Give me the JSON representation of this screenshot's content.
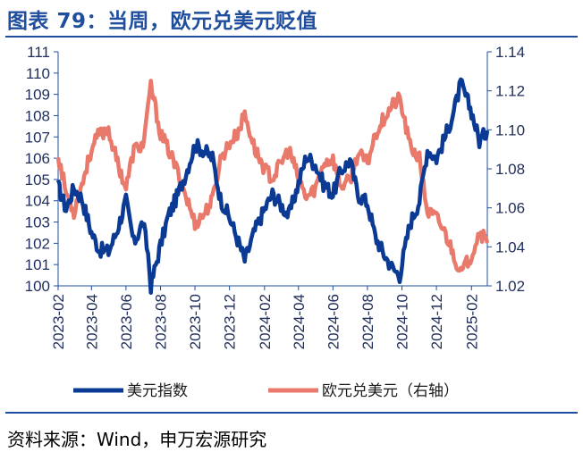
{
  "header": {
    "title": "图表 79：当周，欧元兑美元贬值"
  },
  "footer": {
    "source": "资料来源：Wind，申万宏源研究"
  },
  "chart_data": {
    "type": "line",
    "left_axis": {
      "ylim": [
        100,
        111
      ],
      "ticks": [
        "100",
        "101",
        "102",
        "103",
        "104",
        "105",
        "106",
        "107",
        "108",
        "109",
        "110",
        "111"
      ]
    },
    "right_axis": {
      "ylim": [
        1.02,
        1.14
      ],
      "ticks": [
        "1.02",
        "1.04",
        "1.06",
        "1.08",
        "1.10",
        "1.12",
        "1.14"
      ]
    },
    "x_range": [
      "2023-02",
      "2025-03"
    ],
    "x_ticks": [
      "2023-02",
      "2023-04",
      "2023-06",
      "2023-08",
      "2023-10",
      "2023-12",
      "2024-02",
      "2024-04",
      "2024-06",
      "2024-08",
      "2024-10",
      "2024-12",
      "2025-02"
    ],
    "series": [
      {
        "name": "美元指数",
        "axis": "left",
        "color": "#0a3a94",
        "points": [
          [
            "2023-02-01",
            104.7
          ],
          [
            "2023-02-15",
            103.6
          ],
          [
            "2023-03-01",
            104.6
          ],
          [
            "2023-03-15",
            104.1
          ],
          [
            "2023-04-01",
            102.5
          ],
          [
            "2023-04-15",
            101.7
          ],
          [
            "2023-05-01",
            101.6
          ],
          [
            "2023-05-15",
            102.5
          ],
          [
            "2023-06-01",
            104.0
          ],
          [
            "2023-06-15",
            102.0
          ],
          [
            "2023-07-01",
            103.0
          ],
          [
            "2023-07-10",
            101.5
          ],
          [
            "2023-07-15",
            100.0
          ],
          [
            "2023-08-01",
            101.9
          ],
          [
            "2023-08-15",
            103.3
          ],
          [
            "2023-09-01",
            104.3
          ],
          [
            "2023-09-15",
            105.3
          ],
          [
            "2023-10-01",
            106.6
          ],
          [
            "2023-10-15",
            106.4
          ],
          [
            "2023-11-01",
            106.0
          ],
          [
            "2023-11-15",
            104.1
          ],
          [
            "2023-12-01",
            103.2
          ],
          [
            "2023-12-15",
            102.2
          ],
          [
            "2023-12-28",
            101.2
          ],
          [
            "2024-01-15",
            102.6
          ],
          [
            "2024-02-01",
            103.6
          ],
          [
            "2024-02-15",
            104.3
          ],
          [
            "2024-03-01",
            103.8
          ],
          [
            "2024-03-15",
            103.3
          ],
          [
            "2024-04-01",
            104.8
          ],
          [
            "2024-04-15",
            106.1
          ],
          [
            "2024-05-01",
            105.7
          ],
          [
            "2024-05-15",
            104.8
          ],
          [
            "2024-06-01",
            104.3
          ],
          [
            "2024-06-15",
            105.4
          ],
          [
            "2024-07-01",
            105.9
          ],
          [
            "2024-07-15",
            104.3
          ],
          [
            "2024-08-01",
            103.9
          ],
          [
            "2024-08-15",
            102.3
          ],
          [
            "2024-09-01",
            101.4
          ],
          [
            "2024-09-15",
            100.8
          ],
          [
            "2024-09-27",
            100.5
          ],
          [
            "2024-10-15",
            102.9
          ],
          [
            "2024-11-01",
            104.0
          ],
          [
            "2024-11-15",
            106.4
          ],
          [
            "2024-12-01",
            106.0
          ],
          [
            "2024-12-15",
            106.9
          ],
          [
            "2025-01-01",
            108.2
          ],
          [
            "2025-01-13",
            109.5
          ],
          [
            "2025-02-01",
            108.2
          ],
          [
            "2025-02-15",
            106.8
          ],
          [
            "2025-03-01",
            107.3
          ]
        ]
      },
      {
        "name": "欧元兑美元（右轴）",
        "axis": "right",
        "color": "#e8796b",
        "points": [
          [
            "2023-02-01",
            1.087
          ],
          [
            "2023-02-15",
            1.068
          ],
          [
            "2023-03-01",
            1.058
          ],
          [
            "2023-03-15",
            1.072
          ],
          [
            "2023-04-01",
            1.09
          ],
          [
            "2023-04-15",
            1.098
          ],
          [
            "2023-05-01",
            1.1
          ],
          [
            "2023-05-15",
            1.085
          ],
          [
            "2023-06-01",
            1.07
          ],
          [
            "2023-06-15",
            1.09
          ],
          [
            "2023-07-01",
            1.092
          ],
          [
            "2023-07-10",
            1.11
          ],
          [
            "2023-07-15",
            1.123
          ],
          [
            "2023-08-01",
            1.098
          ],
          [
            "2023-08-15",
            1.09
          ],
          [
            "2023-09-01",
            1.078
          ],
          [
            "2023-09-15",
            1.066
          ],
          [
            "2023-10-01",
            1.052
          ],
          [
            "2023-10-15",
            1.056
          ],
          [
            "2023-11-01",
            1.064
          ],
          [
            "2023-11-15",
            1.085
          ],
          [
            "2023-12-01",
            1.093
          ],
          [
            "2023-12-15",
            1.098
          ],
          [
            "2023-12-28",
            1.108
          ],
          [
            "2024-01-15",
            1.09
          ],
          [
            "2024-02-01",
            1.08
          ],
          [
            "2024-02-15",
            1.075
          ],
          [
            "2024-03-01",
            1.083
          ],
          [
            "2024-03-15",
            1.09
          ],
          [
            "2024-04-01",
            1.075
          ],
          [
            "2024-04-15",
            1.065
          ],
          [
            "2024-05-01",
            1.07
          ],
          [
            "2024-05-15",
            1.083
          ],
          [
            "2024-06-01",
            1.085
          ],
          [
            "2024-06-15",
            1.071
          ],
          [
            "2024-07-01",
            1.074
          ],
          [
            "2024-07-15",
            1.088
          ],
          [
            "2024-08-01",
            1.083
          ],
          [
            "2024-08-15",
            1.098
          ],
          [
            "2024-09-01",
            1.107
          ],
          [
            "2024-09-15",
            1.113
          ],
          [
            "2024-09-27",
            1.116
          ],
          [
            "2024-10-15",
            1.092
          ],
          [
            "2024-11-01",
            1.085
          ],
          [
            "2024-11-15",
            1.058
          ],
          [
            "2024-12-01",
            1.055
          ],
          [
            "2024-12-15",
            1.048
          ],
          [
            "2025-01-01",
            1.036
          ],
          [
            "2025-01-13",
            1.026
          ],
          [
            "2025-02-01",
            1.036
          ],
          [
            "2025-02-15",
            1.048
          ],
          [
            "2025-03-01",
            1.042
          ]
        ]
      }
    ]
  }
}
